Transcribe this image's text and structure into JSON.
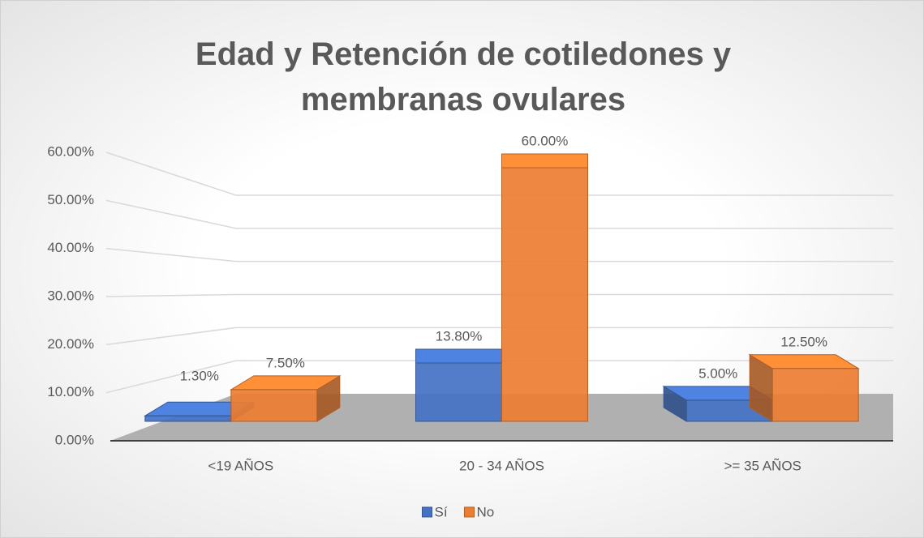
{
  "chart_data": {
    "type": "bar3d",
    "title": "Edad y Retención de cotiledones y membranas ovulares",
    "categories": [
      "<19 AÑOS",
      "20 - 34 AÑOS",
      ">= 35 AÑOS"
    ],
    "series": [
      {
        "name": "Sí",
        "color": "#4472c4",
        "values": [
          1.3,
          13.8,
          5.0
        ],
        "value_labels": [
          "1.30%",
          "13.80%",
          "5.00%"
        ]
      },
      {
        "name": "No",
        "color": "#ed7d31",
        "values": [
          7.5,
          60.0,
          12.5
        ],
        "value_labels": [
          "7.50%",
          "60.00%",
          "12.50%"
        ]
      }
    ],
    "ylim": [
      0,
      60
    ],
    "yticks": [
      {
        "value": 0,
        "label": "0.00%"
      },
      {
        "value": 10,
        "label": "10.00%"
      },
      {
        "value": 20,
        "label": "20.00%"
      },
      {
        "value": 30,
        "label": "30.00%"
      },
      {
        "value": 40,
        "label": "40.00%"
      },
      {
        "value": 50,
        "label": "50.00%"
      },
      {
        "value": 60,
        "label": "60.00%"
      }
    ],
    "grid": true,
    "legend": "bottom"
  }
}
